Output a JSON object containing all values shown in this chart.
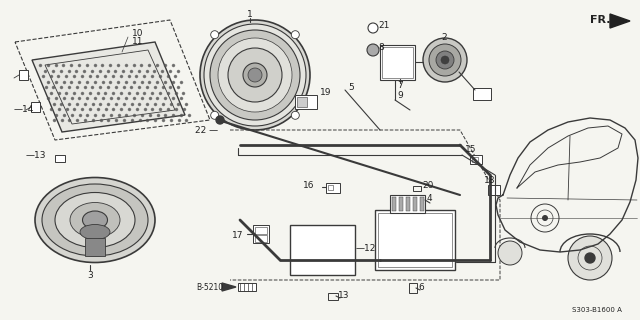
{
  "bg_color": "#f5f5f0",
  "diagram_code": "S303-B1600 A",
  "fr_label": "FR.",
  "line_color": "#3a3a3a",
  "font_size": 6.5
}
